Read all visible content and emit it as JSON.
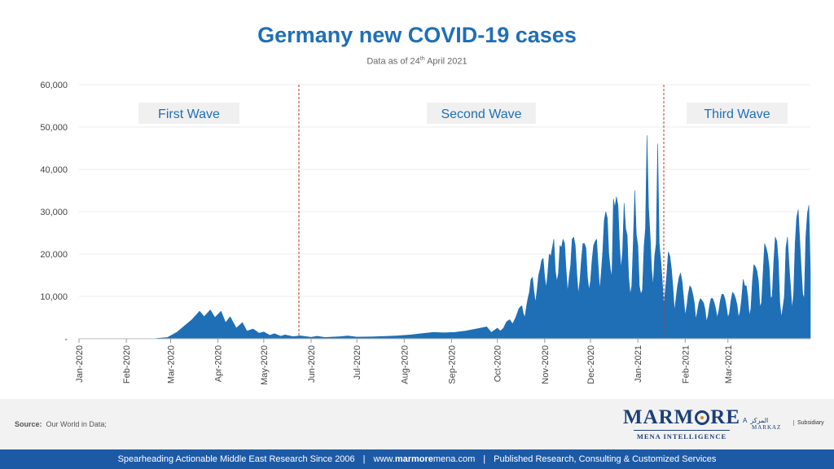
{
  "chart_data": {
    "type": "area",
    "title": "Germany new COVID-19 cases",
    "subtitle_prefix": "Data as of 24",
    "subtitle_sup": "th",
    "subtitle_suffix": " April 2021",
    "xlabel": "",
    "ylabel": "",
    "ylim": [
      0,
      60000
    ],
    "y_ticks": [
      0,
      10000,
      20000,
      30000,
      40000,
      50000,
      60000
    ],
    "y_tick_labels": [
      "-",
      "10,000",
      "20,000",
      "30,000",
      "40,000",
      "50,000",
      "60,000"
    ],
    "x_tick_labels": [
      "Jan-2020",
      "Feb-2020",
      "Mar-2020",
      "Apr-2020",
      "May-2020",
      "Jun-2020",
      "Jul-2020",
      "Aug-2020",
      "Sep-2020",
      "Oct-2020",
      "Nov-2020",
      "Dec-2020",
      "Jan-2021",
      "Feb-2021",
      "Mar-2021"
    ],
    "x_tick_dates": [
      "2020-01-01",
      "2020-02-01",
      "2020-03-01",
      "2020-04-01",
      "2020-05-01",
      "2020-06-01",
      "2020-07-01",
      "2020-08-01",
      "2020-09-01",
      "2020-10-01",
      "2020-11-01",
      "2020-12-01",
      "2021-01-01",
      "2021-02-01",
      "2021-03-01"
    ],
    "x_range": [
      "2020-01-01",
      "2021-04-24"
    ],
    "grid": true,
    "color": "#1f6fb7",
    "series": [
      {
        "name": "",
        "points": [
          [
            "2020-01-01",
            0
          ],
          [
            "2020-02-10",
            0
          ],
          [
            "2020-02-20",
            50
          ],
          [
            "2020-02-28",
            300
          ],
          [
            "2020-03-05",
            1500
          ],
          [
            "2020-03-10",
            3000
          ],
          [
            "2020-03-15",
            4500
          ],
          [
            "2020-03-20",
            6500
          ],
          [
            "2020-03-23",
            5200
          ],
          [
            "2020-03-27",
            6800
          ],
          [
            "2020-03-30",
            5000
          ],
          [
            "2020-04-03",
            6500
          ],
          [
            "2020-04-06",
            3800
          ],
          [
            "2020-04-09",
            5200
          ],
          [
            "2020-04-13",
            2500
          ],
          [
            "2020-04-17",
            3800
          ],
          [
            "2020-04-20",
            1800
          ],
          [
            "2020-04-24",
            2300
          ],
          [
            "2020-04-28",
            1300
          ],
          [
            "2020-05-01",
            1600
          ],
          [
            "2020-05-05",
            800
          ],
          [
            "2020-05-08",
            1200
          ],
          [
            "2020-05-12",
            600
          ],
          [
            "2020-05-15",
            900
          ],
          [
            "2020-05-20",
            500
          ],
          [
            "2020-05-25",
            700
          ],
          [
            "2020-06-01",
            350
          ],
          [
            "2020-06-05",
            600
          ],
          [
            "2020-06-10",
            300
          ],
          [
            "2020-06-15",
            400
          ],
          [
            "2020-06-20",
            500
          ],
          [
            "2020-06-25",
            650
          ],
          [
            "2020-07-01",
            400
          ],
          [
            "2020-07-10",
            450
          ],
          [
            "2020-07-20",
            550
          ],
          [
            "2020-07-28",
            700
          ],
          [
            "2020-08-05",
            900
          ],
          [
            "2020-08-12",
            1200
          ],
          [
            "2020-08-20",
            1500
          ],
          [
            "2020-08-27",
            1400
          ],
          [
            "2020-09-03",
            1500
          ],
          [
            "2020-09-10",
            1800
          ],
          [
            "2020-09-17",
            2300
          ],
          [
            "2020-09-24",
            2800
          ],
          [
            "2020-09-27",
            1500
          ],
          [
            "2020-10-01",
            2500
          ],
          [
            "2020-10-03",
            1800
          ],
          [
            "2020-10-05",
            2500
          ],
          [
            "2020-10-07",
            4000
          ],
          [
            "2020-10-09",
            4500
          ],
          [
            "2020-10-11",
            3500
          ],
          [
            "2020-10-13",
            5000
          ],
          [
            "2020-10-15",
            7000
          ],
          [
            "2020-10-16",
            7500
          ],
          [
            "2020-10-17",
            7800
          ],
          [
            "2020-10-18",
            6000
          ],
          [
            "2020-10-19",
            5000
          ],
          [
            "2020-10-20",
            7500
          ],
          [
            "2020-10-21",
            9500
          ],
          [
            "2020-10-22",
            11000
          ],
          [
            "2020-10-23",
            14000
          ],
          [
            "2020-10-24",
            14500
          ],
          [
            "2020-10-25",
            11000
          ],
          [
            "2020-10-26",
            8500
          ],
          [
            "2020-10-27",
            11500
          ],
          [
            "2020-10-28",
            15000
          ],
          [
            "2020-10-29",
            16500
          ],
          [
            "2020-10-30",
            18500
          ],
          [
            "2020-10-31",
            19000
          ],
          [
            "2020-11-01",
            14500
          ],
          [
            "2020-11-02",
            12000
          ],
          [
            "2020-11-03",
            15500
          ],
          [
            "2020-11-04",
            20000
          ],
          [
            "2020-11-05",
            19500
          ],
          [
            "2020-11-06",
            21500
          ],
          [
            "2020-11-07",
            23500
          ],
          [
            "2020-11-08",
            16000
          ],
          [
            "2020-11-09",
            13500
          ],
          [
            "2020-11-10",
            15500
          ],
          [
            "2020-11-11",
            22000
          ],
          [
            "2020-11-12",
            21500
          ],
          [
            "2020-11-13",
            23500
          ],
          [
            "2020-11-14",
            22500
          ],
          [
            "2020-11-15",
            16500
          ],
          [
            "2020-11-16",
            11000
          ],
          [
            "2020-11-17",
            14500
          ],
          [
            "2020-11-18",
            17500
          ],
          [
            "2020-11-19",
            23500
          ],
          [
            "2020-11-20",
            24000
          ],
          [
            "2020-11-21",
            22000
          ],
          [
            "2020-11-22",
            15500
          ],
          [
            "2020-11-23",
            10500
          ],
          [
            "2020-11-24",
            13500
          ],
          [
            "2020-11-25",
            18500
          ],
          [
            "2020-11-26",
            22500
          ],
          [
            "2020-11-27",
            22500
          ],
          [
            "2020-11-28",
            21500
          ],
          [
            "2020-11-29",
            14500
          ],
          [
            "2020-11-30",
            11500
          ],
          [
            "2020-12-01",
            13500
          ],
          [
            "2020-12-02",
            18500
          ],
          [
            "2020-12-03",
            22000
          ],
          [
            "2020-12-04",
            23000
          ],
          [
            "2020-12-05",
            23500
          ],
          [
            "2020-12-06",
            17500
          ],
          [
            "2020-12-07",
            11500
          ],
          [
            "2020-12-08",
            15500
          ],
          [
            "2020-12-09",
            20500
          ],
          [
            "2020-12-10",
            28000
          ],
          [
            "2020-12-11",
            30000
          ],
          [
            "2020-12-12",
            28500
          ],
          [
            "2020-12-13",
            20000
          ],
          [
            "2020-12-14",
            16500
          ],
          [
            "2020-12-15",
            14500
          ],
          [
            "2020-12-16",
            33000
          ],
          [
            "2020-12-17",
            31000
          ],
          [
            "2020-12-18",
            33500
          ],
          [
            "2020-12-19",
            31500
          ],
          [
            "2020-12-20",
            22000
          ],
          [
            "2020-12-21",
            16500
          ],
          [
            "2020-12-22",
            20500
          ],
          [
            "2020-12-23",
            32000
          ],
          [
            "2020-12-24",
            26000
          ],
          [
            "2020-12-25",
            24500
          ],
          [
            "2020-12-26",
            14500
          ],
          [
            "2020-12-27",
            10500
          ],
          [
            "2020-12-28",
            12500
          ],
          [
            "2020-12-29",
            22500
          ],
          [
            "2020-12-30",
            35000
          ],
          [
            "2020-12-31",
            24500
          ],
          [
            "2021-01-01",
            22000
          ],
          [
            "2021-01-02",
            12500
          ],
          [
            "2021-01-03",
            10500
          ],
          [
            "2021-01-04",
            11500
          ],
          [
            "2021-01-05",
            21500
          ],
          [
            "2021-01-06",
            26000
          ],
          [
            "2021-01-07",
            48000
          ],
          [
            "2021-01-08",
            31000
          ],
          [
            "2021-01-09",
            24500
          ],
          [
            "2021-01-10",
            16500
          ],
          [
            "2021-01-11",
            12500
          ],
          [
            "2021-01-12",
            19500
          ],
          [
            "2021-01-13",
            22500
          ],
          [
            "2021-01-14",
            46000
          ],
          [
            "2021-01-15",
            22500
          ],
          [
            "2021-01-16",
            18500
          ],
          [
            "2021-01-17",
            13500
          ],
          [
            "2021-01-18",
            7500
          ],
          [
            "2021-01-19",
            11500
          ],
          [
            "2021-01-20",
            15500
          ],
          [
            "2021-01-21",
            20500
          ],
          [
            "2021-01-22",
            19500
          ],
          [
            "2021-01-23",
            16500
          ],
          [
            "2021-01-24",
            12000
          ],
          [
            "2021-01-25",
            6500
          ],
          [
            "2021-01-26",
            9500
          ],
          [
            "2021-01-27",
            12500
          ],
          [
            "2021-01-28",
            14500
          ],
          [
            "2021-01-29",
            15500
          ],
          [
            "2021-01-30",
            13500
          ],
          [
            "2021-01-31",
            9500
          ],
          [
            "2021-02-01",
            5500
          ],
          [
            "2021-02-02",
            7500
          ],
          [
            "2021-02-03",
            10500
          ],
          [
            "2021-02-04",
            12500
          ],
          [
            "2021-02-05",
            12000
          ],
          [
            "2021-02-06",
            10500
          ],
          [
            "2021-02-07",
            8500
          ],
          [
            "2021-02-08",
            4500
          ],
          [
            "2021-02-09",
            6500
          ],
          [
            "2021-02-10",
            8500
          ],
          [
            "2021-02-11",
            9500
          ],
          [
            "2021-02-12",
            9000
          ],
          [
            "2021-02-13",
            8500
          ],
          [
            "2021-02-14",
            7000
          ],
          [
            "2021-02-15",
            4000
          ],
          [
            "2021-02-16",
            5500
          ],
          [
            "2021-02-17",
            8000
          ],
          [
            "2021-02-18",
            9500
          ],
          [
            "2021-02-19",
            9500
          ],
          [
            "2021-02-20",
            8500
          ],
          [
            "2021-02-21",
            7000
          ],
          [
            "2021-02-22",
            5000
          ],
          [
            "2021-02-23",
            6500
          ],
          [
            "2021-02-24",
            9000
          ],
          [
            "2021-02-25",
            10500
          ],
          [
            "2021-02-26",
            10500
          ],
          [
            "2021-02-27",
            9500
          ],
          [
            "2021-02-28",
            7500
          ],
          [
            "2021-03-01",
            5000
          ],
          [
            "2021-03-02",
            6000
          ],
          [
            "2021-03-03",
            9000
          ],
          [
            "2021-03-04",
            11000
          ],
          [
            "2021-03-05",
            10500
          ],
          [
            "2021-03-06",
            9500
          ],
          [
            "2021-03-07",
            8000
          ],
          [
            "2021-03-08",
            5000
          ],
          [
            "2021-03-09",
            6500
          ],
          [
            "2021-03-10",
            9500
          ],
          [
            "2021-03-11",
            14000
          ],
          [
            "2021-03-12",
            12500
          ],
          [
            "2021-03-13",
            12500
          ],
          [
            "2021-03-14",
            10000
          ],
          [
            "2021-03-15",
            5500
          ],
          [
            "2021-03-16",
            7000
          ],
          [
            "2021-03-17",
            13500
          ],
          [
            "2021-03-18",
            17500
          ],
          [
            "2021-03-19",
            17000
          ],
          [
            "2021-03-20",
            16000
          ],
          [
            "2021-03-21",
            13500
          ],
          [
            "2021-03-22",
            7500
          ],
          [
            "2021-03-23",
            8500
          ],
          [
            "2021-03-24",
            15500
          ],
          [
            "2021-03-25",
            22500
          ],
          [
            "2021-03-26",
            21500
          ],
          [
            "2021-03-27",
            20000
          ],
          [
            "2021-03-28",
            17000
          ],
          [
            "2021-03-29",
            9500
          ],
          [
            "2021-03-30",
            10000
          ],
          [
            "2021-03-31",
            18000
          ],
          [
            "2021-04-01",
            24000
          ],
          [
            "2021-04-02",
            23000
          ],
          [
            "2021-04-03",
            18500
          ],
          [
            "2021-04-04",
            8500
          ],
          [
            "2021-04-05",
            5000
          ],
          [
            "2021-04-06",
            7500
          ],
          [
            "2021-04-07",
            10000
          ],
          [
            "2021-04-08",
            21500
          ],
          [
            "2021-04-09",
            24000
          ],
          [
            "2021-04-10",
            17500
          ],
          [
            "2021-04-11",
            12500
          ],
          [
            "2021-04-12",
            7000
          ],
          [
            "2021-04-13",
            10500
          ],
          [
            "2021-04-14",
            22500
          ],
          [
            "2021-04-15",
            28500
          ],
          [
            "2021-04-16",
            30500
          ],
          [
            "2021-04-17",
            23500
          ],
          [
            "2021-04-18",
            16500
          ],
          [
            "2021-04-19",
            10500
          ],
          [
            "2021-04-20",
            9500
          ],
          [
            "2021-04-21",
            24000
          ],
          [
            "2021-04-22",
            29500
          ],
          [
            "2021-04-23",
            31500
          ],
          [
            "2021-04-24",
            16000
          ]
        ]
      }
    ],
    "annotations": [
      {
        "label": "First Wave",
        "x_from": "2020-01-01",
        "x_to": "2020-05-24"
      },
      {
        "label": "Second Wave",
        "x_from": "2020-05-24",
        "x_to": "2021-01-18"
      },
      {
        "label": "Third Wave",
        "x_from": "2021-01-18",
        "x_to": "2021-04-24"
      }
    ],
    "divider_dates": [
      "2020-05-24",
      "2021-01-18"
    ],
    "divider_color": "#c0392b"
  },
  "source": {
    "label": "Source:",
    "text": "Our World in Data;"
  },
  "logo": {
    "name_left": "MARM",
    "name_right": "RE",
    "tagline": "MENA INTELLIGENCE",
    "affiliation_prefix": "A",
    "affiliation_arabic": "المركز",
    "affiliation_name": "MARKAZ",
    "affiliation_suffix": "Subsidiary"
  },
  "footer": {
    "left": "Spearheading Actionable Middle East Research Since 2006",
    "separator": "|",
    "site_prefix": "www.",
    "site_brand": "marmore",
    "site_suffix": "mena.com",
    "right": "Published Research, Consulting & Customized Services"
  }
}
